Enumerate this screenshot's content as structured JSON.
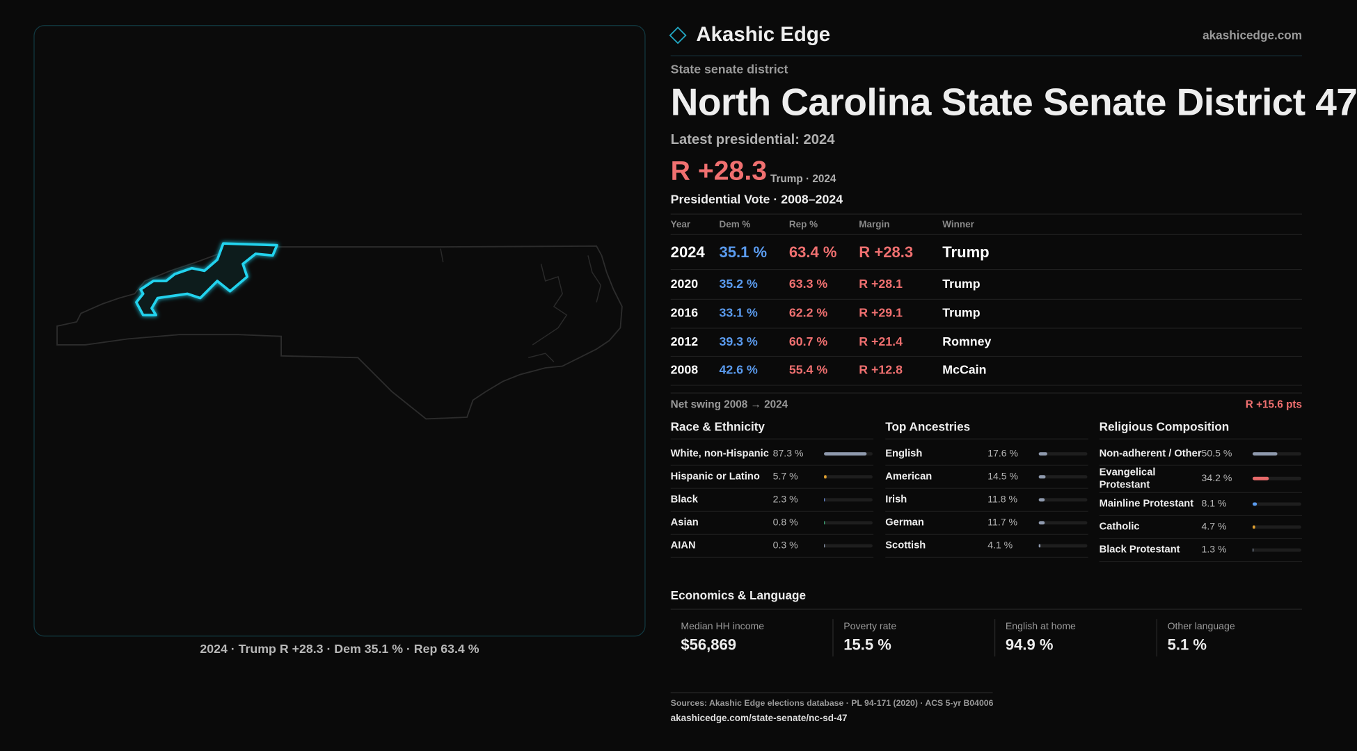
{
  "header": {
    "brand": "Akashic Edge",
    "site": "akashicedge.com"
  },
  "district": {
    "kind": "State senate district",
    "title": "North Carolina State Senate District 47",
    "latest_label": "Latest presidential: 2024",
    "margin": "R +28.3",
    "margin_note": "Trump · 2024"
  },
  "map": {
    "caption": "2024 · Trump R +28.3 · Dem 35.1 % · Rep 63.4 %"
  },
  "table": {
    "title": "Presidential Vote · 2008–2024",
    "columns": [
      "Year",
      "Dem %",
      "Rep %",
      "Margin",
      "Winner"
    ],
    "rows": [
      [
        "2024",
        "35.1 %",
        "63.4 %",
        "R +28.3",
        "Trump"
      ],
      [
        "2020",
        "35.2 %",
        "63.3 %",
        "R +28.1",
        "Trump"
      ],
      [
        "2016",
        "33.1 %",
        "62.2 %",
        "R +29.1",
        "Trump"
      ],
      [
        "2012",
        "39.3 %",
        "60.7 %",
        "R +21.4",
        "Romney"
      ],
      [
        "2008",
        "42.6 %",
        "55.4 %",
        "R +12.8",
        "McCain"
      ]
    ]
  },
  "swing": {
    "label": "Net swing 2008 → 2024",
    "value": "R +15.6 pts"
  },
  "race": {
    "title": "Race & Ethnicity",
    "rows": [
      {
        "label": "White, non-Hispanic",
        "value": 87.3,
        "value_label": "87.3 %",
        "color": "#8f9aae"
      },
      {
        "label": "Hispanic or Latino",
        "value": 5.7,
        "value_label": "5.7 %",
        "color": "#e0a030"
      },
      {
        "label": "Black",
        "value": 2.3,
        "value_label": "2.3 %",
        "color": "#6a8ad8"
      },
      {
        "label": "Asian",
        "value": 0.8,
        "value_label": "0.8 %",
        "color": "#3fae7a"
      },
      {
        "label": "AIAN",
        "value": 0.3,
        "value_label": "0.3 %",
        "color": "#8f9aae"
      }
    ]
  },
  "ancestry": {
    "title": "Top Ancestries",
    "rows": [
      {
        "label": "English",
        "value": 17.6,
        "value_label": "17.6 %",
        "color": "#8f9aae"
      },
      {
        "label": "American",
        "value": 14.5,
        "value_label": "14.5 %",
        "color": "#8f9aae"
      },
      {
        "label": "Irish",
        "value": 11.8,
        "value_label": "11.8 %",
        "color": "#8f9aae"
      },
      {
        "label": "German",
        "value": 11.7,
        "value_label": "11.7 %",
        "color": "#8f9aae"
      },
      {
        "label": "Scottish",
        "value": 4.1,
        "value_label": "4.1 %",
        "color": "#8f9aae"
      }
    ]
  },
  "religion": {
    "title": "Religious Composition",
    "rows": [
      {
        "label": "Non-adherent / Other",
        "value": 50.5,
        "value_label": "50.5 %",
        "color": "#8f9aae"
      },
      {
        "label": "Evangelical Protestant",
        "value": 34.2,
        "value_label": "34.2 %",
        "color": "#e86a6a"
      },
      {
        "label": "Mainline Protestant",
        "value": 8.1,
        "value_label": "8.1 %",
        "color": "#5b9cf0"
      },
      {
        "label": "Catholic",
        "value": 4.7,
        "value_label": "4.7 %",
        "color": "#e0a030"
      },
      {
        "label": "Black Protestant",
        "value": 1.3,
        "value_label": "1.3 %",
        "color": "#8f9aae"
      }
    ]
  },
  "economics": {
    "title": "Economics & Language",
    "cards": [
      {
        "label": "Median HH income",
        "value": "$56,869"
      },
      {
        "label": "Poverty rate",
        "value": "15.5 %"
      },
      {
        "label": "English at home",
        "value": "94.9 %"
      },
      {
        "label": "Other language",
        "value": "5.1 %"
      }
    ]
  },
  "footer": {
    "sources": "Sources: Akashic Edge elections database · PL 94-171 (2020) · ACS 5-yr B04006",
    "url": "akashicedge.com/state-senate/nc-sd-47"
  }
}
